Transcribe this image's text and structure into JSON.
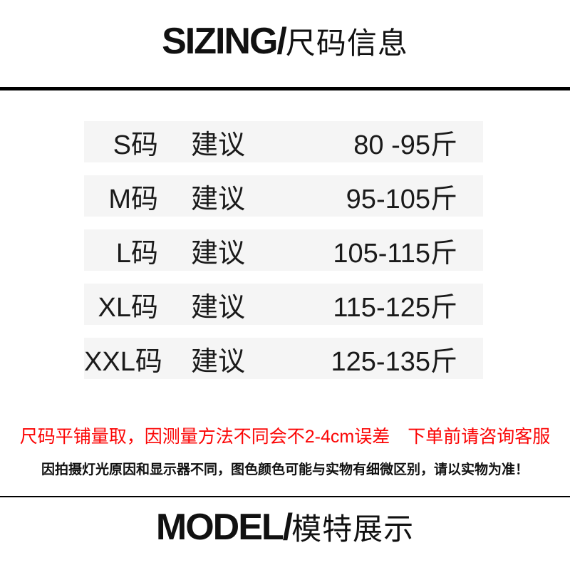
{
  "header": {
    "title_latin": "SIZING/",
    "title_cjk": "尺码信息"
  },
  "size_table": {
    "row_bg": "#f5f5f5",
    "suggest_label": "建议",
    "rows": [
      {
        "size": "S码",
        "label": "建议",
        "range": "80 -95斤"
      },
      {
        "size": "M码",
        "label": "建议",
        "range": "95-105斤"
      },
      {
        "size": "L码",
        "label": "建议",
        "range": "105-115斤"
      },
      {
        "size": "XL码",
        "label": "建议",
        "range": "115-125斤"
      },
      {
        "size": "XXL码",
        "label": "建议",
        "range": "125-135斤"
      }
    ]
  },
  "notes": {
    "warning": "尺码平铺量取，因测量方法不同会不2-4cm误差　下单前请咨询客服",
    "warning_color": "#fb0505",
    "disclaimer": "因拍摄灯光原因和显示器不同，图色颜色可能与实物有细微区别，请以实物为准！"
  },
  "footer": {
    "title_latin": "MODEL/",
    "title_cjk": "模特展示"
  }
}
